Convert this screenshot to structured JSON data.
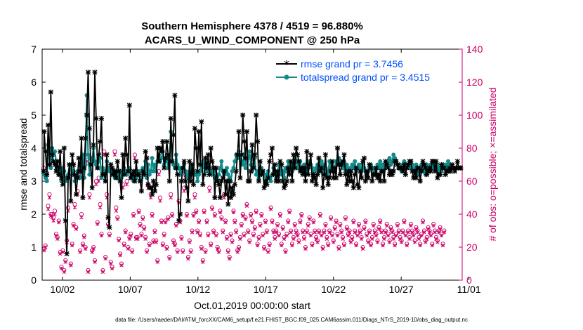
{
  "chart_data": {
    "type": "line",
    "title_line1": "Southern Hemisphere 4378 / 4519 = 96.880%",
    "title_line2": "ACARS_U_WIND_COMPONENT @ 250 hPa",
    "xlabel": "Oct.01,2019 00:00:00 start",
    "ylabel": "rmse and totalspread",
    "ylabel_right": "# of obs: o=possible; ×=assimilated",
    "footer": "data file: /Users/raeder/DAI/ATM_forcXX/CAM6_setup/f.e21.FHIST_BGC.f09_025.CAM6assim.011/Diags_NTrS_2019-10/obs_diag_output.nc",
    "xlim": [
      0.5,
      31.5
    ],
    "ylim": [
      0,
      7
    ],
    "ylim_right": [
      0,
      140
    ],
    "x_tick_values": [
      2,
      7,
      12,
      17,
      22,
      27,
      32
    ],
    "x_tick_labels": [
      "10/02",
      "10/07",
      "10/12",
      "10/17",
      "10/22",
      "10/27",
      "11/01"
    ],
    "y_ticks": [
      0,
      1,
      2,
      3,
      4,
      5,
      6,
      7
    ],
    "y_ticks_right": [
      0,
      20,
      40,
      60,
      80,
      100,
      120,
      140
    ],
    "legend_position": "top-right",
    "colors": {
      "rmse": "#000000",
      "totalspread": "#138a8a",
      "obs": "#cc0066",
      "legend_text": "#0050ff"
    },
    "series": [
      {
        "name": "rmse grand pr = 3.7456",
        "values": [
          3.3,
          4.5,
          3.9,
          3.2,
          4.7,
          3.5,
          5.7,
          3.8,
          3.6,
          3.5,
          3.3,
          3.6,
          3.2,
          3.9,
          3.1,
          2.9,
          4.0,
          1.8,
          0.8,
          3.1,
          3.5,
          2.4,
          3.8,
          3.5,
          3.2,
          2.6,
          3.1,
          3.7,
          3.3,
          4.3,
          2.5,
          3.4,
          4.3,
          5.0,
          6.3,
          4.6,
          3.5,
          2.8,
          4.1,
          6.3,
          4.9,
          3.4,
          3.8,
          4.2,
          4.9,
          3.2,
          3.2,
          3.0,
          3.8,
          1.9,
          1.6,
          3.5,
          3.4,
          3.2,
          3.3,
          3.1,
          3.6,
          3.3,
          3.0,
          2.5,
          3.8,
          3.2,
          4.3,
          3.8,
          3.3,
          5.3,
          3.1,
          3.2,
          3.3,
          3.0,
          3.6,
          3.2,
          3.2,
          3.0,
          2.7,
          3.3,
          3.2,
          3.9,
          3.7,
          2.9,
          2.8,
          2.8,
          2.6,
          3.0,
          2.7,
          2.9,
          4.0,
          3.6,
          4.0,
          3.9,
          4.2,
          3.4,
          3.7,
          4.2,
          3.8,
          3.0,
          4.9,
          3.6,
          4.4,
          5.6,
          3.4,
          3.2,
          1.8,
          2.0,
          3.0,
          3.4,
          3.6,
          3.0,
          2.8,
          2.4,
          3.6,
          3.0,
          3.5,
          2.9,
          4.6,
          4.0,
          3.3,
          4.5,
          3.5,
          4.8,
          2.9,
          3.2,
          3.7,
          3.4,
          3.8,
          3.2,
          4.0,
          3.6,
          3.4,
          2.5,
          3.4,
          3.0,
          2.9,
          2.5,
          3.0,
          3.1,
          3.3,
          2.6,
          3.0,
          2.3,
          3.0,
          2.5,
          2.8,
          2.6,
          2.9,
          3.3,
          3.8,
          4.5,
          3.1,
          3.8,
          5.0,
          4.2,
          3.7,
          4.5,
          3.0,
          3.0,
          3.3,
          4.1,
          3.4,
          3.8,
          5.0,
          4.2,
          3.0,
          3.6,
          3.2,
          3.3,
          2.8,
          3.0,
          2.9,
          3.1,
          3.6,
          3.8,
          4.0,
          3.2,
          3.5,
          3.0,
          3.3,
          3.0,
          3.6,
          3.5,
          3.0,
          2.8,
          2.9,
          3.0,
          3.4,
          3.2,
          3.6,
          3.0,
          3.8,
          3.4,
          4.0,
          3.8,
          3.6,
          3.3,
          3.4,
          3.2,
          3.4,
          3.0,
          3.9,
          3.2,
          3.5,
          3.8,
          3.0,
          3.2,
          3.1,
          2.9,
          3.2,
          3.7,
          3.3,
          3.4,
          2.8,
          3.2,
          3.8,
          3.1,
          2.9,
          3.1,
          3.3,
          3.6,
          3.1,
          3.4,
          3.1,
          4.0,
          3.5,
          3.2,
          3.5,
          3.6,
          3.8,
          3.2,
          2.9,
          3.3,
          3.0,
          3.3,
          3.0,
          2.8,
          3.2,
          3.4,
          2.9,
          2.8,
          3.3,
          3.1,
          3.6,
          3.7,
          3.0,
          3.3,
          3.1,
          3.5,
          3.4,
          3.0,
          3.2,
          3.2,
          3.4,
          3.1,
          3.2,
          3.0,
          3.3,
          3.3,
          3.0,
          3.6,
          3.5,
          3.4,
          3.2,
          3.3,
          3.2,
          3.3,
          3.6,
          3.6,
          3.5,
          3.4,
          3.4,
          3.4,
          3.3,
          3.5,
          3.2,
          3.4,
          3.5,
          3.6,
          3.6,
          3.3,
          3.1,
          3.3,
          3.1,
          3.4,
          3.4,
          3.0,
          3.3,
          3.6,
          3.5,
          3.4,
          3.2,
          3.3,
          3.4,
          3.3,
          3.6,
          3.6,
          3.3,
          3.6,
          3.1,
          3.2,
          3.2,
          3.5,
          3.4,
          3.4,
          3.2,
          3.3,
          3.3,
          3.4,
          3.3,
          3.5,
          3.4,
          3.3,
          3.4,
          3.6,
          3.4,
          3.4,
          3.4
        ]
      },
      {
        "name": "totalspread grand pr = 3.4515",
        "values": [
          3.3,
          3.2,
          3.1,
          3.0,
          4.1,
          3.9,
          3.4,
          4.0,
          3.8,
          3.9,
          3.6,
          3.4,
          3.2,
          3.4,
          3.0,
          3.4,
          3.3,
          3.0,
          3.1,
          3.2,
          3.5,
          3.4,
          3.2,
          3.3,
          3.0,
          3.1,
          3.3,
          3.1,
          3.1,
          3.4,
          3.8,
          3.1,
          3.5,
          5.6,
          3.8,
          3.2,
          3.7,
          3.6,
          4.0,
          3.6,
          3.5,
          3.4,
          3.6,
          3.7,
          3.1,
          3.4,
          3.3,
          3.0,
          3.6,
          3.4,
          3.3,
          3.3,
          3.2,
          3.3,
          3.1,
          3.3,
          3.1,
          3.2,
          3.3,
          3.1,
          3.2,
          3.4,
          3.3,
          3.2,
          3.3,
          3.4,
          3.1,
          3.2,
          3.0,
          3.3,
          3.1,
          3.2,
          3.3,
          3.0,
          3.1,
          3.4,
          3.3,
          3.6,
          3.1,
          3.5,
          3.2,
          3.3,
          3.7,
          3.3,
          3.5,
          3.3,
          3.6,
          3.8,
          3.6,
          3.7,
          3.9,
          3.5,
          3.6,
          3.7,
          3.4,
          3.6,
          4.5,
          3.6,
          3.5,
          3.4,
          3.8,
          3.5,
          3.4,
          3.2,
          3.4,
          3.3,
          3.5,
          3.3,
          3.2,
          3.1,
          3.3,
          3.2,
          3.4,
          3.3,
          3.2,
          3.2,
          3.0,
          3.2,
          3.3,
          3.4,
          3.6,
          3.5,
          3.4,
          3.3,
          3.5,
          3.4,
          3.3,
          3.2,
          3.3,
          3.1,
          3.1,
          3.0,
          3.2,
          3.4,
          3.6,
          3.3,
          3.2,
          3.3,
          3.4,
          3.2,
          3.1,
          3.0,
          3.3,
          3.4,
          3.6,
          3.8,
          3.7,
          3.9,
          3.7,
          3.6,
          3.5,
          3.8,
          3.4,
          3.6,
          3.7,
          3.9,
          3.5,
          3.3,
          3.5,
          3.7,
          3.2,
          3.3,
          3.1,
          3.2,
          3.4,
          3.3,
          3.2,
          3.0,
          3.2,
          3.3,
          3.1,
          3.0,
          3.2,
          3.4,
          3.3,
          3.1,
          3.2,
          3.5,
          3.4,
          3.2,
          3.3,
          3.1,
          3.4,
          3.3,
          3.6,
          3.5,
          3.5,
          3.3,
          3.4,
          3.7,
          3.6,
          3.4,
          3.5,
          3.6,
          3.4,
          3.3,
          3.5,
          3.2,
          3.3,
          3.4,
          3.6,
          3.5,
          3.4,
          3.2,
          3.3,
          3.4,
          3.5,
          3.3,
          3.4,
          3.6,
          3.5,
          3.3,
          3.4,
          3.2,
          3.3,
          3.6,
          3.4,
          3.5,
          3.3,
          3.4,
          3.6,
          3.5,
          3.7,
          3.6,
          3.5,
          3.4,
          3.6,
          3.3,
          3.5,
          3.2,
          3.4,
          3.3,
          3.5,
          3.4,
          3.6,
          3.3,
          3.4,
          3.5,
          3.4,
          3.3,
          3.5,
          3.4,
          3.3,
          3.2,
          3.3,
          3.4,
          3.5,
          3.4,
          3.3,
          3.4,
          3.2,
          3.5,
          3.4,
          3.6,
          3.3,
          3.5,
          3.4,
          3.4,
          3.5,
          3.6,
          3.7,
          3.5,
          3.6,
          3.8,
          3.7,
          3.6,
          3.5,
          3.4,
          3.5,
          3.3,
          3.4,
          3.6,
          3.5,
          3.4,
          3.5,
          3.4,
          3.6,
          3.5,
          3.3,
          3.4,
          3.5,
          3.3,
          3.2,
          3.4,
          3.5,
          3.3,
          3.4,
          3.2,
          3.5,
          3.4,
          3.3,
          3.5,
          3.4,
          3.6,
          3.5,
          3.4,
          3.5,
          3.3,
          3.4,
          3.3,
          3.5,
          3.4,
          3.5,
          3.4,
          3.6,
          3.5,
          3.4,
          3.4
        ]
      },
      {
        "name": "possible",
        "axis": "right",
        "values": [
          68,
          19,
          21,
          65,
          45,
          52,
          40,
          40,
          38,
          42,
          28,
          26,
          36,
          17,
          8,
          18,
          6,
          12,
          24,
          44,
          65,
          10,
          22,
          34,
          46,
          32,
          54,
          66,
          18,
          40,
          22,
          27,
          20,
          75,
          6,
          52,
          74,
          18,
          20,
          12,
          60,
          35,
          62,
          46,
          28,
          6,
          78,
          14,
          52,
          34,
          28,
          11,
          8,
          67,
          78,
          44,
          38,
          25,
          16,
          10,
          58,
          22,
          30,
          60,
          20,
          26,
          28,
          18,
          40,
          76,
          26,
          26,
          42,
          34,
          28,
          38,
          32,
          26,
          18,
          58,
          22,
          52,
          40,
          24,
          30,
          24,
          12,
          66,
          50,
          36,
          22,
          28,
          36,
          20,
          38,
          14,
          52,
          40,
          24,
          22,
          34,
          18,
          48,
          36,
          26,
          18,
          56,
          64,
          40,
          14,
          24,
          18,
          30,
          40,
          52,
          42,
          30,
          36,
          28,
          20,
          12,
          42,
          18,
          36,
          28,
          56,
          22,
          44,
          30,
          40,
          28,
          20,
          18,
          42,
          38,
          30,
          52,
          36,
          26,
          18,
          14,
          28,
          24,
          42,
          36,
          30,
          18,
          20,
          26,
          34,
          40,
          28,
          38,
          46,
          30,
          24,
          40,
          36,
          28,
          32,
          42,
          22,
          26,
          34,
          40,
          28,
          20,
          36,
          30,
          18,
          22,
          44,
          36,
          30,
          26,
          30,
          34,
          28,
          40,
          22,
          32,
          26,
          18,
          28,
          36,
          42,
          30,
          22,
          26,
          34,
          30,
          28,
          24,
          36,
          40,
          30,
          26,
          20,
          30,
          34,
          38,
          28,
          22,
          36,
          30,
          26,
          24,
          30,
          40,
          28,
          20,
          30,
          34,
          26,
          22,
          30,
          38,
          28,
          24,
          32,
          36,
          28,
          20,
          34,
          30,
          26,
          22,
          38,
          32,
          28,
          30,
          24,
          26,
          36,
          30,
          22,
          28,
          34,
          30,
          26,
          20,
          32,
          36,
          28,
          24,
          30,
          22,
          26,
          34,
          30,
          28,
          24,
          32,
          36,
          30,
          22,
          26,
          30,
          34,
          28,
          24,
          32,
          30,
          26,
          22,
          28,
          34,
          30,
          26,
          24,
          30,
          36,
          28,
          22,
          30,
          26,
          34,
          30,
          28,
          24,
          32,
          30,
          26,
          22,
          28,
          36,
          30,
          24,
          26,
          32,
          30,
          28,
          22,
          34,
          30,
          26,
          24,
          30,
          32,
          28,
          22,
          30
        ]
      },
      {
        "name": "assimilated",
        "axis": "right",
        "values": [
          65,
          18,
          20,
          62,
          43,
          50,
          39,
          38,
          36,
          40,
          27,
          25,
          35,
          16,
          7,
          17,
          5,
          11,
          23,
          42,
          63,
          9,
          21,
          33,
          44,
          31,
          52,
          64,
          17,
          38,
          21,
          26,
          19,
          72,
          5,
          50,
          72,
          17,
          19,
          11,
          58,
          34,
          60,
          44,
          27,
          5,
          76,
          13,
          50,
          33,
          27,
          10,
          7,
          65,
          76,
          42,
          37,
          24,
          15,
          9,
          56,
          21,
          29,
          58,
          19,
          25,
          27,
          17,
          39,
          74,
          25,
          25,
          41,
          33,
          27,
          37,
          31,
          25,
          17,
          56,
          21,
          50,
          39,
          23,
          29,
          23,
          11,
          64,
          48,
          35,
          21,
          27,
          35,
          19,
          37,
          13,
          50,
          39,
          23,
          21,
          33,
          17,
          47,
          35,
          25,
          17,
          54,
          62,
          39,
          13,
          23,
          17,
          29,
          39,
          50,
          41,
          29,
          35,
          27,
          19,
          11,
          41,
          17,
          35,
          27,
          54,
          21,
          43,
          29,
          39,
          27,
          19,
          17,
          41,
          37,
          29,
          50,
          35,
          25,
          17,
          13,
          27,
          23,
          41,
          35,
          29,
          17,
          19,
          25,
          33,
          39,
          27,
          37,
          45,
          29,
          23,
          39,
          35,
          27,
          31,
          41,
          21,
          25,
          33,
          39,
          27,
          19,
          35,
          29,
          17,
          21,
          43,
          35,
          29,
          25,
          29,
          33,
          27,
          39,
          21,
          31,
          25,
          17,
          27,
          35,
          41,
          29,
          21,
          25,
          33,
          29,
          27,
          23,
          35,
          39,
          29,
          25,
          19,
          29,
          33,
          37,
          27,
          21,
          35,
          29,
          25,
          23,
          29,
          39,
          27,
          19,
          29,
          33,
          25,
          21,
          29,
          37,
          27,
          23,
          31,
          35,
          27,
          19,
          33,
          29,
          25,
          21,
          37,
          31,
          27,
          29,
          23,
          25,
          35,
          29,
          21,
          27,
          33,
          29,
          25,
          19,
          31,
          35,
          27,
          23,
          29,
          21,
          25,
          33,
          29,
          27,
          23,
          31,
          35,
          29,
          21,
          25,
          29,
          33,
          27,
          23,
          31,
          29,
          25,
          21,
          27,
          33,
          29,
          25,
          23,
          29,
          35,
          27,
          21,
          29,
          25,
          33,
          29,
          27,
          23,
          31,
          29,
          25,
          21,
          27,
          35,
          29,
          23,
          25,
          31,
          29,
          27,
          21,
          33,
          29,
          25,
          23,
          29,
          31,
          27,
          21,
          29
        ]
      }
    ]
  }
}
